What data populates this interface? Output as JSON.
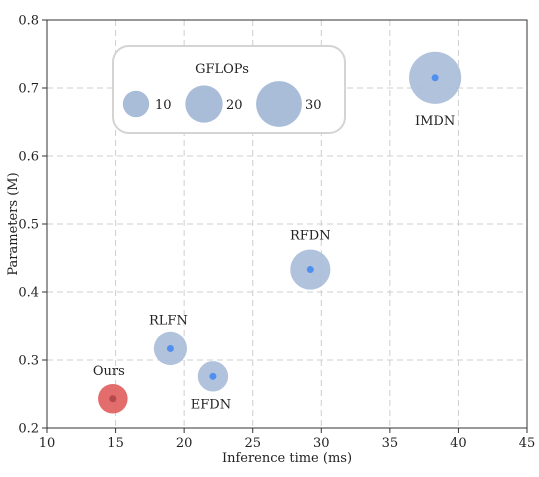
{
  "chart_data": {
    "type": "scatter",
    "xlabel": "Inference time (ms)",
    "ylabel": "Parameters (M)",
    "xlim": [
      10,
      45
    ],
    "ylim": [
      0.2,
      0.8
    ],
    "x_ticks": [
      10,
      15,
      20,
      25,
      30,
      35,
      40,
      45
    ],
    "y_ticks": [
      0.2,
      0.3,
      0.4,
      0.5,
      0.6,
      0.7,
      0.8
    ],
    "grid": true,
    "size_encoding": "GFLOPs",
    "points": [
      {
        "name": "Ours",
        "x": 14.8,
        "y": 0.243,
        "gflops": 9.5,
        "color": "#e05c5c",
        "dot_color": "#b5484a"
      },
      {
        "name": "RLFN",
        "x": 19.0,
        "y": 0.317,
        "gflops": 12.0,
        "color": "#a9bcd8",
        "dot_color": "#4f8ff0"
      },
      {
        "name": "EFDN",
        "x": 22.1,
        "y": 0.276,
        "gflops": 10.0,
        "color": "#a9bcd8",
        "dot_color": "#4f8ff0"
      },
      {
        "name": "RFDN",
        "x": 29.2,
        "y": 0.433,
        "gflops": 17.5,
        "color": "#a9bcd8",
        "dot_color": "#4f8ff0"
      },
      {
        "name": "IMDN",
        "x": 38.3,
        "y": 0.715,
        "gflops": 29.5,
        "color": "#a9bcd8",
        "dot_color": "#4f8ff0"
      }
    ],
    "legend": {
      "title": "GFLOPs",
      "placement": "top-left",
      "entries": [
        {
          "label": "10",
          "value": 10
        },
        {
          "label": "20",
          "value": 20
        },
        {
          "label": "30",
          "value": 30
        }
      ]
    },
    "bubble_color": "#a9bcd8"
  }
}
